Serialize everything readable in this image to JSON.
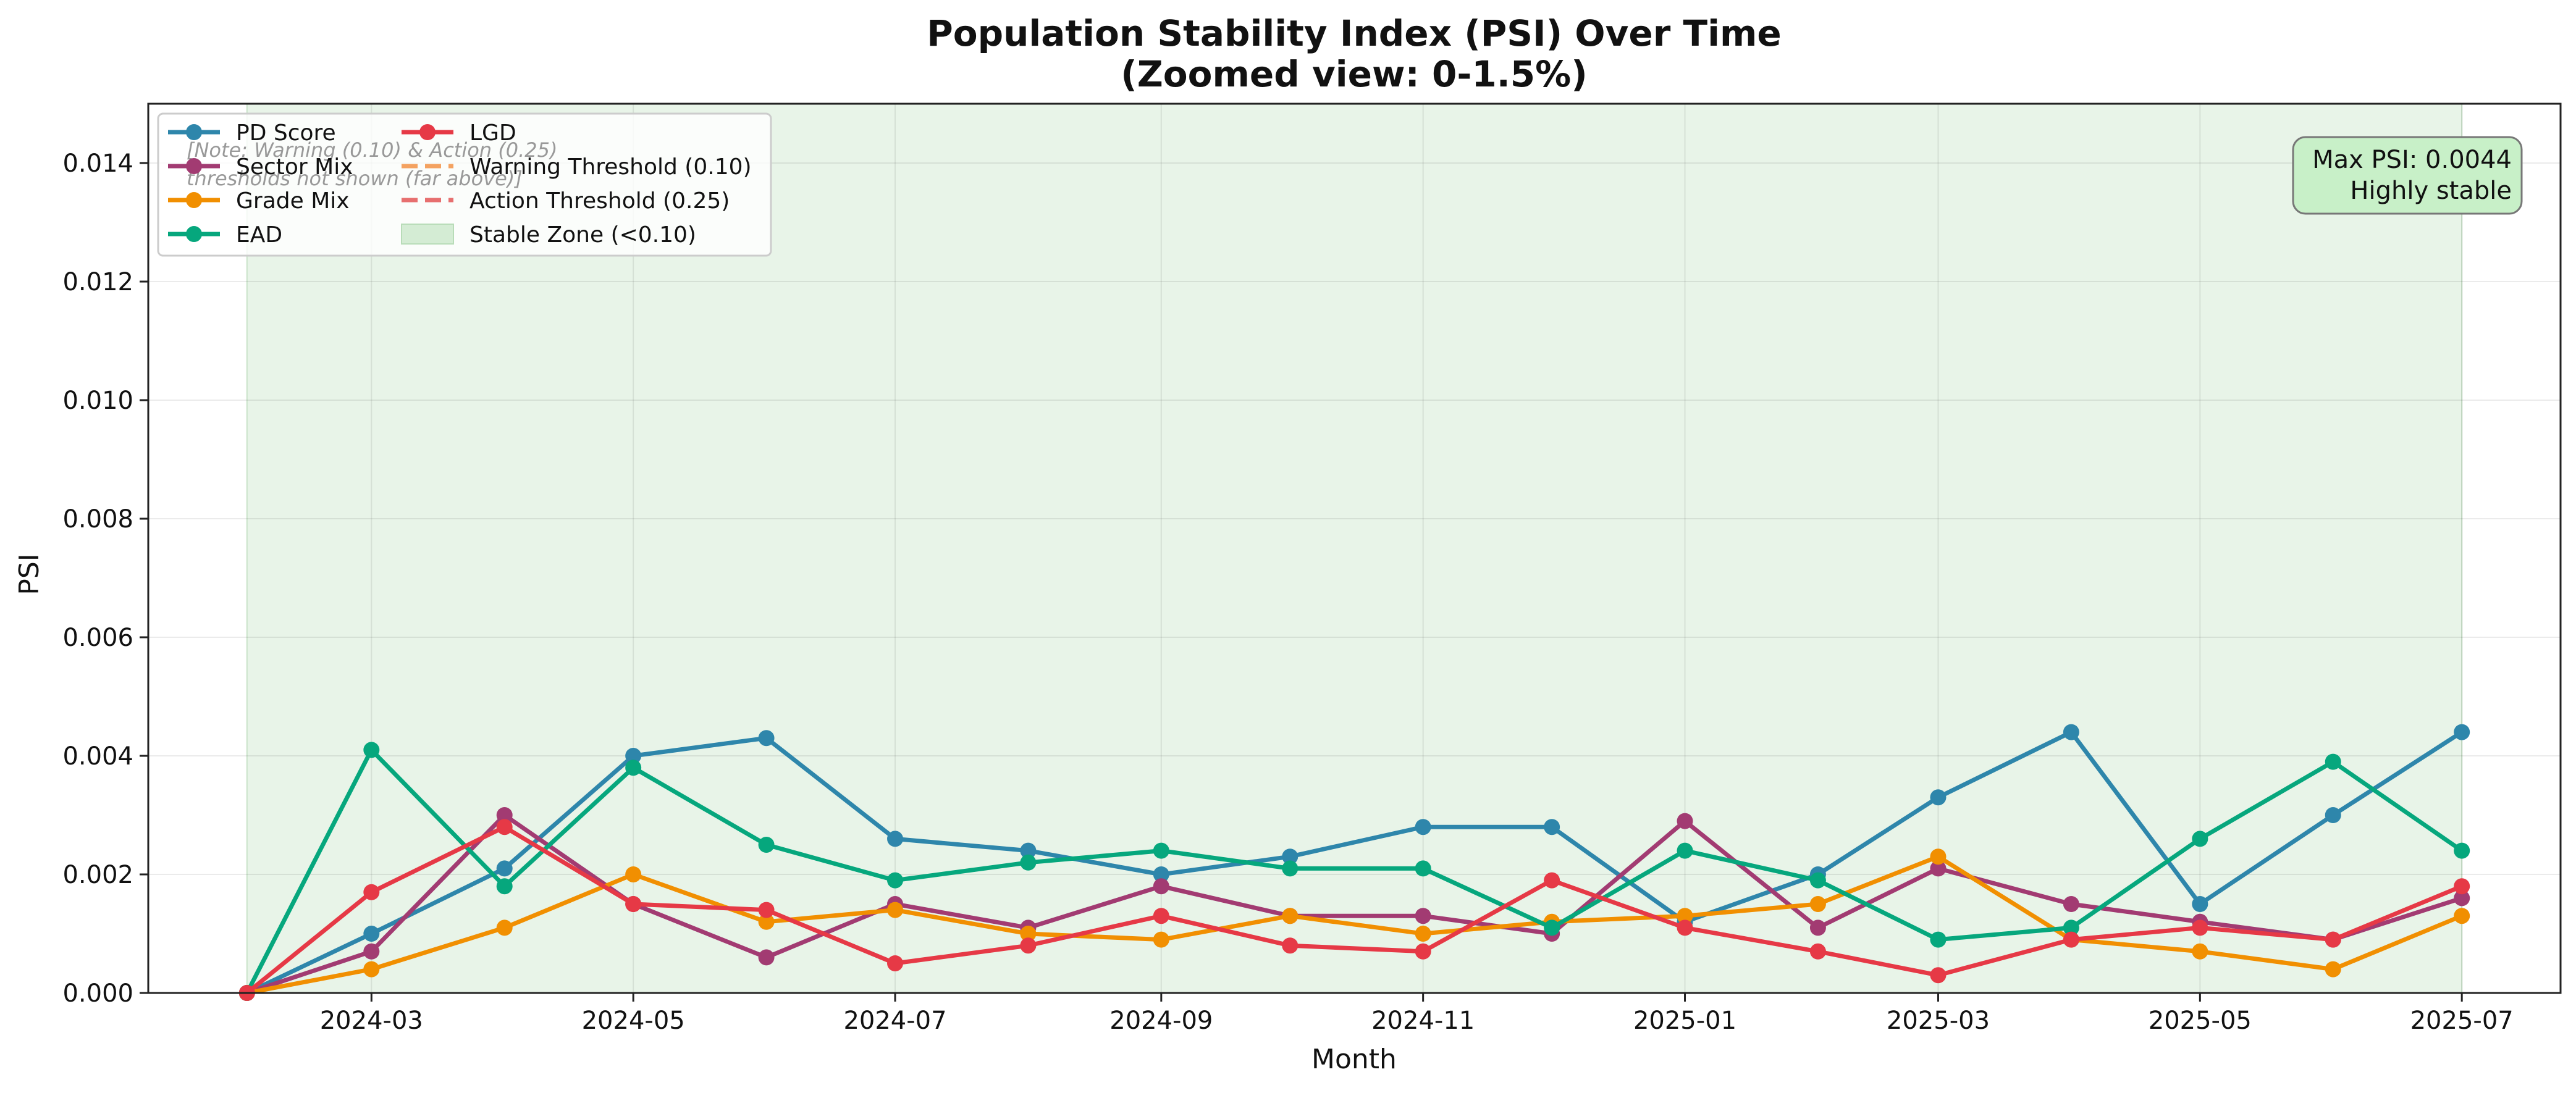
{
  "chart_data": {
    "type": "line",
    "title": "Population Stability Index (PSI) Over Time",
    "subtitle": "(Zoomed view: 0-1.5%)",
    "xlabel": "Month",
    "ylabel": "PSI",
    "ylim": [
      0,
      0.015
    ],
    "xlim": [
      "2024-01-09",
      "2025-07-24"
    ],
    "grid": true,
    "legend_position": "top-left",
    "x": [
      "2024-02",
      "2024-03",
      "2024-04",
      "2024-05",
      "2024-06",
      "2024-07",
      "2024-08",
      "2024-09",
      "2024-10",
      "2024-11",
      "2024-12",
      "2025-01",
      "2025-02",
      "2025-03",
      "2025-04",
      "2025-05",
      "2025-06",
      "2025-07"
    ],
    "x_ticks": [
      "2024-03",
      "2024-05",
      "2024-07",
      "2024-09",
      "2024-11",
      "2025-01",
      "2025-03",
      "2025-05",
      "2025-07"
    ],
    "y_ticks": [
      "0.000",
      "0.002",
      "0.004",
      "0.006",
      "0.008",
      "0.010",
      "0.012",
      "0.014"
    ],
    "y_tick_values": [
      0,
      0.002,
      0.004,
      0.006,
      0.008,
      0.01,
      0.012,
      0.014
    ],
    "series": [
      {
        "name": "PD Score",
        "color": "#2e86ab",
        "values": [
          0,
          0.001,
          0.0021,
          0.004,
          0.0043,
          0.0026,
          0.0024,
          0.002,
          0.0023,
          0.0028,
          0.0028,
          0.0012,
          0.002,
          0.0033,
          0.0044,
          0.0015,
          0.003,
          0.0044
        ]
      },
      {
        "name": "Sector Mix",
        "color": "#a23b72",
        "values": [
          0,
          0.0007,
          0.003,
          0.0015,
          0.0006,
          0.0015,
          0.0011,
          0.0018,
          0.0013,
          0.0013,
          0.001,
          0.0029,
          0.0011,
          0.0021,
          0.0015,
          0.0012,
          0.0009,
          0.0016
        ]
      },
      {
        "name": "Grade Mix",
        "color": "#f18f01",
        "values": [
          0,
          0.0004,
          0.0011,
          0.002,
          0.0012,
          0.0014,
          0.001,
          0.0009,
          0.0013,
          0.001,
          0.0012,
          0.0013,
          0.0015,
          0.0023,
          0.0009,
          0.0007,
          0.0004,
          0.0013
        ]
      },
      {
        "name": "EAD",
        "color": "#06a77d",
        "values": [
          0,
          0.0041,
          0.0018,
          0.0038,
          0.0025,
          0.0019,
          0.0022,
          0.0024,
          0.0021,
          0.0021,
          0.0011,
          0.0024,
          0.0019,
          0.0009,
          0.0011,
          0.0026,
          0.0039,
          0.0024
        ]
      },
      {
        "name": "LGD",
        "color": "#e63946",
        "values": [
          0,
          0.0017,
          0.0028,
          0.0015,
          0.0014,
          0.0005,
          0.0008,
          0.0013,
          0.0008,
          0.0007,
          0.0019,
          0.0011,
          0.0007,
          0.0003,
          0.0009,
          0.0011,
          0.0009,
          0.0018
        ]
      }
    ],
    "legend": {
      "col1": [
        "PD Score",
        "Sector Mix",
        "Grade Mix",
        "EAD"
      ],
      "col2": [
        "LGD",
        "Warning Threshold (0.10)",
        "Action Threshold (0.25)",
        "Stable Zone (<0.10)"
      ],
      "warning_color": "#f4a261",
      "action_color": "#e76f6f",
      "zone_color": "#d4ecd4"
    },
    "stable_zone": {
      "x_start": "2024-02",
      "x_end": "2025-07",
      "color": "#e8f4e8"
    },
    "note_line1": "[Note: Warning (0.10) & Action (0.25)",
    "note_line2": "thresholds not shown (far above)]",
    "annotation_line1": "Max PSI: 0.0044",
    "annotation_line2": "Highly stable",
    "annotation_bg": "#c8f0c8"
  }
}
